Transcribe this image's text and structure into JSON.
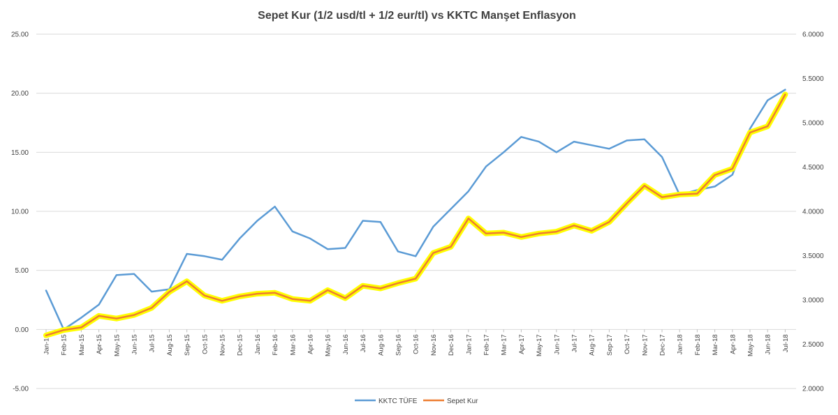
{
  "chart_data": {
    "type": "line",
    "title": "Sepet Kur (1/2 usd/tl + 1/2 eur/tl)  vs  KKTC Manşet Enflasyon",
    "x": [
      "Jan-15",
      "Feb-15",
      "Mar-15",
      "Apr-15",
      "May-15",
      "Jun-15",
      "Jul-15",
      "Aug-15",
      "Sep-15",
      "Oct-15",
      "Nov-15",
      "Dec-15",
      "Jan-16",
      "Feb-16",
      "Mar-16",
      "Apr-16",
      "May-16",
      "Jun-16",
      "Jul-16",
      "Aug-16",
      "Sep-16",
      "Oct-16",
      "Nov-16",
      "Dec-16",
      "Jan-17",
      "Feb-17",
      "Mar-17",
      "Apr-17",
      "May-17",
      "Jun-17",
      "Jul-17",
      "Aug-17",
      "Sep-17",
      "Oct-17",
      "Nov-17",
      "Dec-17",
      "Jan-18",
      "Feb-18",
      "Mar-18",
      "Apr-18",
      "May-18",
      "Jun-18",
      "Jul-18"
    ],
    "y_left": {
      "ticks": [
        "25.00",
        "20.00",
        "15.00",
        "10.00",
        "5.00",
        "0.00",
        "-5.00"
      ],
      "range": [
        -5,
        25
      ]
    },
    "y_right": {
      "ticks": [
        "6.0000",
        "5.5000",
        "5.0000",
        "4.5000",
        "4.0000",
        "3.5000",
        "3.0000",
        "2.5000",
        "2.0000"
      ],
      "range": [
        2.0,
        6.0
      ]
    },
    "grid": true,
    "legend_position": "bottom",
    "series": [
      {
        "name": "KKTC TÜFE",
        "axis": "left",
        "color": "#5b9bd5",
        "values": [
          3.3,
          0.0,
          1.0,
          2.1,
          4.6,
          4.7,
          3.2,
          3.4,
          6.4,
          6.2,
          5.9,
          7.7,
          9.2,
          10.4,
          8.3,
          7.7,
          6.8,
          6.9,
          9.2,
          9.1,
          6.6,
          6.2,
          8.7,
          10.2,
          11.7,
          13.8,
          15.0,
          16.3,
          15.9,
          15.0,
          15.9,
          15.6,
          15.3,
          16.0,
          16.1,
          14.6,
          11.4,
          11.8,
          12.1,
          13.1,
          17.0,
          19.4,
          20.3
        ]
      },
      {
        "name": "Sepet Kur",
        "axis": "right",
        "color": "#ed7d31",
        "highlight": "#ffff00",
        "values": [
          2.6,
          2.66,
          2.69,
          2.82,
          2.79,
          2.83,
          2.91,
          3.09,
          3.21,
          3.05,
          2.99,
          3.04,
          3.07,
          3.08,
          3.01,
          2.99,
          3.11,
          3.02,
          3.16,
          3.13,
          3.19,
          3.24,
          3.53,
          3.6,
          3.92,
          3.75,
          3.76,
          3.71,
          3.75,
          3.77,
          3.84,
          3.78,
          3.88,
          4.09,
          4.29,
          4.16,
          4.19,
          4.2,
          4.41,
          4.48,
          4.89,
          4.96,
          5.32
        ]
      }
    ]
  }
}
